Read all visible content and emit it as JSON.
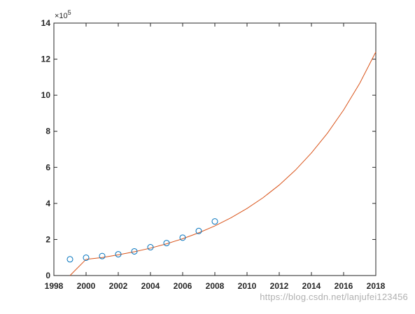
{
  "chart_data": {
    "type": "line",
    "title": "",
    "xlabel": "",
    "ylabel": "",
    "y_exponent_label": "10",
    "y_exponent_power": "5",
    "xlim": [
      1998,
      2018
    ],
    "ylim": [
      0,
      1400000
    ],
    "x_ticks": [
      1998,
      2000,
      2002,
      2004,
      2006,
      2008,
      2010,
      2012,
      2014,
      2016,
      2018
    ],
    "y_ticks": [
      0,
      200000,
      400000,
      600000,
      800000,
      1000000,
      1200000,
      1400000
    ],
    "x_tick_labels": [
      "1998",
      "2000",
      "2002",
      "2004",
      "2006",
      "2008",
      "2010",
      "2012",
      "2014",
      "2016",
      "2018"
    ],
    "y_tick_labels": [
      "0",
      "2",
      "4",
      "6",
      "8",
      "10",
      "12",
      "14"
    ],
    "grid": false,
    "legend": "none",
    "series": [
      {
        "type": "scatter",
        "marker": "circle-open",
        "color": "#0072BD",
        "x": [
          1999,
          2000,
          2001,
          2002,
          2003,
          2004,
          2005,
          2006,
          2007,
          2008
        ],
        "y": [
          90000,
          99000,
          108000,
          118000,
          134000,
          157000,
          180000,
          210000,
          247000,
          300000
        ]
      },
      {
        "type": "line",
        "color": "#D95319",
        "x": [
          1999,
          2000,
          2001,
          2002,
          2003,
          2004,
          2005,
          2006,
          2007,
          2008,
          2009,
          2010,
          2011,
          2012,
          2013,
          2014,
          2015,
          2016,
          2017,
          2018
        ],
        "y": [
          0,
          90000,
          100000,
          115000,
          132000,
          152000,
          176000,
          204000,
          237000,
          275000,
          320000,
          372000,
          432000,
          502000,
          584000,
          680000,
          790000,
          918000,
          1066000,
          1240000
        ]
      }
    ]
  },
  "watermark": "https://blog.csdn.net/lanjufei123456",
  "colors": {
    "axis": "#262626",
    "background": "#ffffff"
  }
}
